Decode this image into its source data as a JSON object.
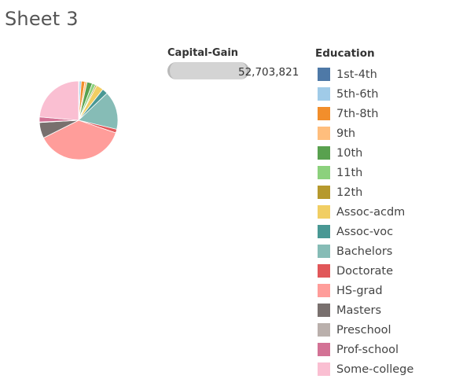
{
  "sheet": {
    "title": "Sheet 3"
  },
  "size_legend": {
    "title": "Capital-Gain",
    "value": "52,703,821"
  },
  "color_legend": {
    "title": "Education",
    "items": [
      {
        "label": "1st-4th",
        "color": "#4e79a7"
      },
      {
        "label": "5th-6th",
        "color": "#a0cbe8"
      },
      {
        "label": "7th-8th",
        "color": "#f28e2b"
      },
      {
        "label": "9th",
        "color": "#ffbe7d"
      },
      {
        "label": "10th",
        "color": "#59a14f"
      },
      {
        "label": "11th",
        "color": "#8cd17d"
      },
      {
        "label": "12th",
        "color": "#b6992d"
      },
      {
        "label": "Assoc-acdm",
        "color": "#f1ce63"
      },
      {
        "label": "Assoc-voc",
        "color": "#499894"
      },
      {
        "label": "Bachelors",
        "color": "#86bcb6"
      },
      {
        "label": "Doctorate",
        "color": "#e15759"
      },
      {
        "label": "HS-grad",
        "color": "#ff9d9a"
      },
      {
        "label": "Masters",
        "color": "#79706e"
      },
      {
        "label": "Preschool",
        "color": "#bab0ac"
      },
      {
        "label": "Prof-school",
        "color": "#d37295"
      },
      {
        "label": "Some-college",
        "color": "#fabfd2"
      }
    ]
  },
  "chart_data": {
    "type": "pie",
    "measure": "Capital-Gain",
    "dimension": "Education",
    "total": 52703821,
    "categories": [
      "1st-4th",
      "5th-6th",
      "7th-8th",
      "9th",
      "10th",
      "11th",
      "12th",
      "Assoc-acdm",
      "Assoc-voc",
      "Bachelors",
      "Doctorate",
      "HS-grad",
      "Masters",
      "Preschool",
      "Prof-school",
      "Some-college"
    ],
    "values": [
      0.3,
      0.8,
      1.5,
      0.9,
      2.2,
      1.4,
      0.6,
      2.9,
      2.3,
      15.8,
      1.5,
      37.4,
      6.5,
      0.2,
      2.1,
      23.6
    ],
    "unit": "% of total Capital-Gain (approx.)"
  }
}
